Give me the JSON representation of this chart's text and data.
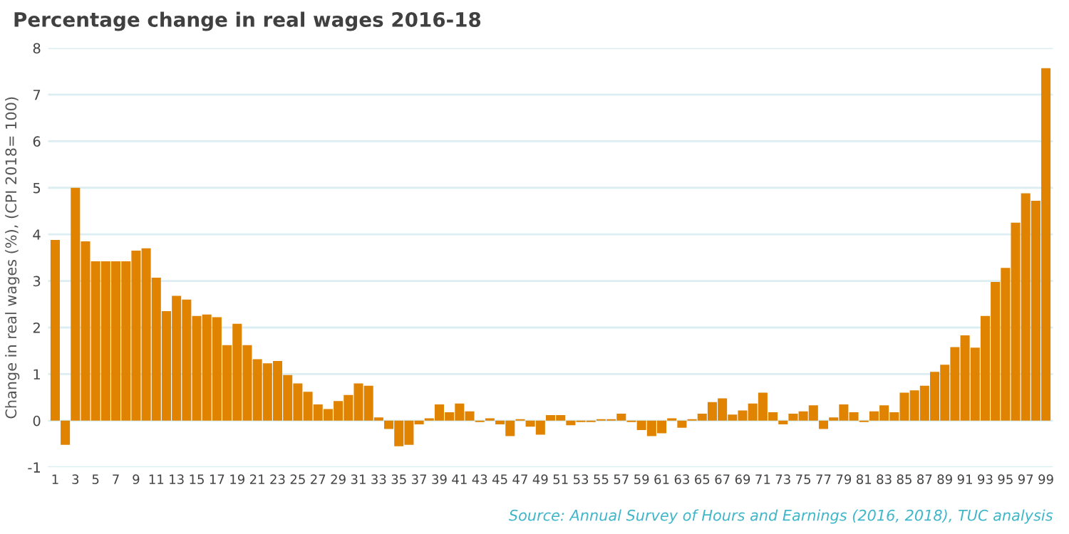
{
  "chart_data": {
    "type": "bar",
    "title": "Percentage change in real wages 2016-18",
    "ylabel": "Change in real wages (%), (CPI 2018= 100)",
    "categories": [
      "1",
      null,
      "3",
      null,
      "5",
      null,
      "7",
      null,
      "9",
      null,
      "11",
      null,
      "13",
      null,
      "15",
      null,
      "17",
      null,
      "19",
      null,
      "21",
      null,
      "23",
      null,
      "25",
      null,
      "27",
      null,
      "29",
      null,
      "31",
      null,
      "33",
      null,
      "35",
      null,
      "37",
      null,
      "39",
      null,
      "41",
      null,
      "43",
      null,
      "45",
      null,
      "47",
      null,
      "49",
      null,
      "51",
      null,
      "53",
      null,
      "55",
      null,
      "57",
      null,
      "59",
      null,
      "61",
      null,
      "63",
      null,
      "65",
      null,
      "67",
      null,
      "69",
      null,
      "71",
      null,
      "73",
      null,
      "75",
      null,
      "77",
      null,
      "79",
      null,
      "81",
      null,
      "83",
      null,
      "85",
      null,
      "87",
      null,
      "89",
      null,
      "91",
      null,
      "93",
      null,
      "95",
      null,
      "97",
      null,
      "99"
    ],
    "values": [
      3.88,
      -0.52,
      5.0,
      3.85,
      3.42,
      3.42,
      3.42,
      3.42,
      3.65,
      3.7,
      3.07,
      2.35,
      2.68,
      2.6,
      2.25,
      2.28,
      2.22,
      1.62,
      2.08,
      1.62,
      1.32,
      1.23,
      1.28,
      0.98,
      0.8,
      0.62,
      0.35,
      0.25,
      0.42,
      0.55,
      0.8,
      0.75,
      0.07,
      -0.18,
      -0.55,
      -0.52,
      -0.08,
      0.05,
      0.35,
      0.18,
      0.37,
      0.2,
      -0.03,
      0.05,
      -0.08,
      -0.33,
      0.03,
      -0.13,
      -0.3,
      0.12,
      0.12,
      -0.1,
      -0.03,
      -0.03,
      0.03,
      0.03,
      0.15,
      -0.03,
      -0.2,
      -0.33,
      -0.27,
      0.05,
      -0.15,
      0.03,
      0.15,
      0.4,
      0.48,
      0.13,
      0.22,
      0.37,
      0.6,
      0.18,
      -0.08,
      0.15,
      0.2,
      0.33,
      -0.18,
      0.07,
      0.35,
      0.18,
      -0.03,
      0.2,
      0.33,
      0.18,
      0.6,
      0.65,
      0.75,
      1.05,
      1.2,
      1.58,
      1.83,
      1.57,
      2.25,
      2.98,
      3.28,
      4.25,
      4.88,
      4.72,
      7.57
    ],
    "color": "#e08300",
    "ylim": [
      -1,
      8
    ],
    "yticks": [
      -1,
      0,
      1,
      2,
      3,
      4,
      5,
      6,
      7,
      8
    ],
    "grid": "y",
    "annotations": [
      "Source: Annual Survey of Hours and Earnings (2016, 2018), TUC analysis"
    ]
  }
}
